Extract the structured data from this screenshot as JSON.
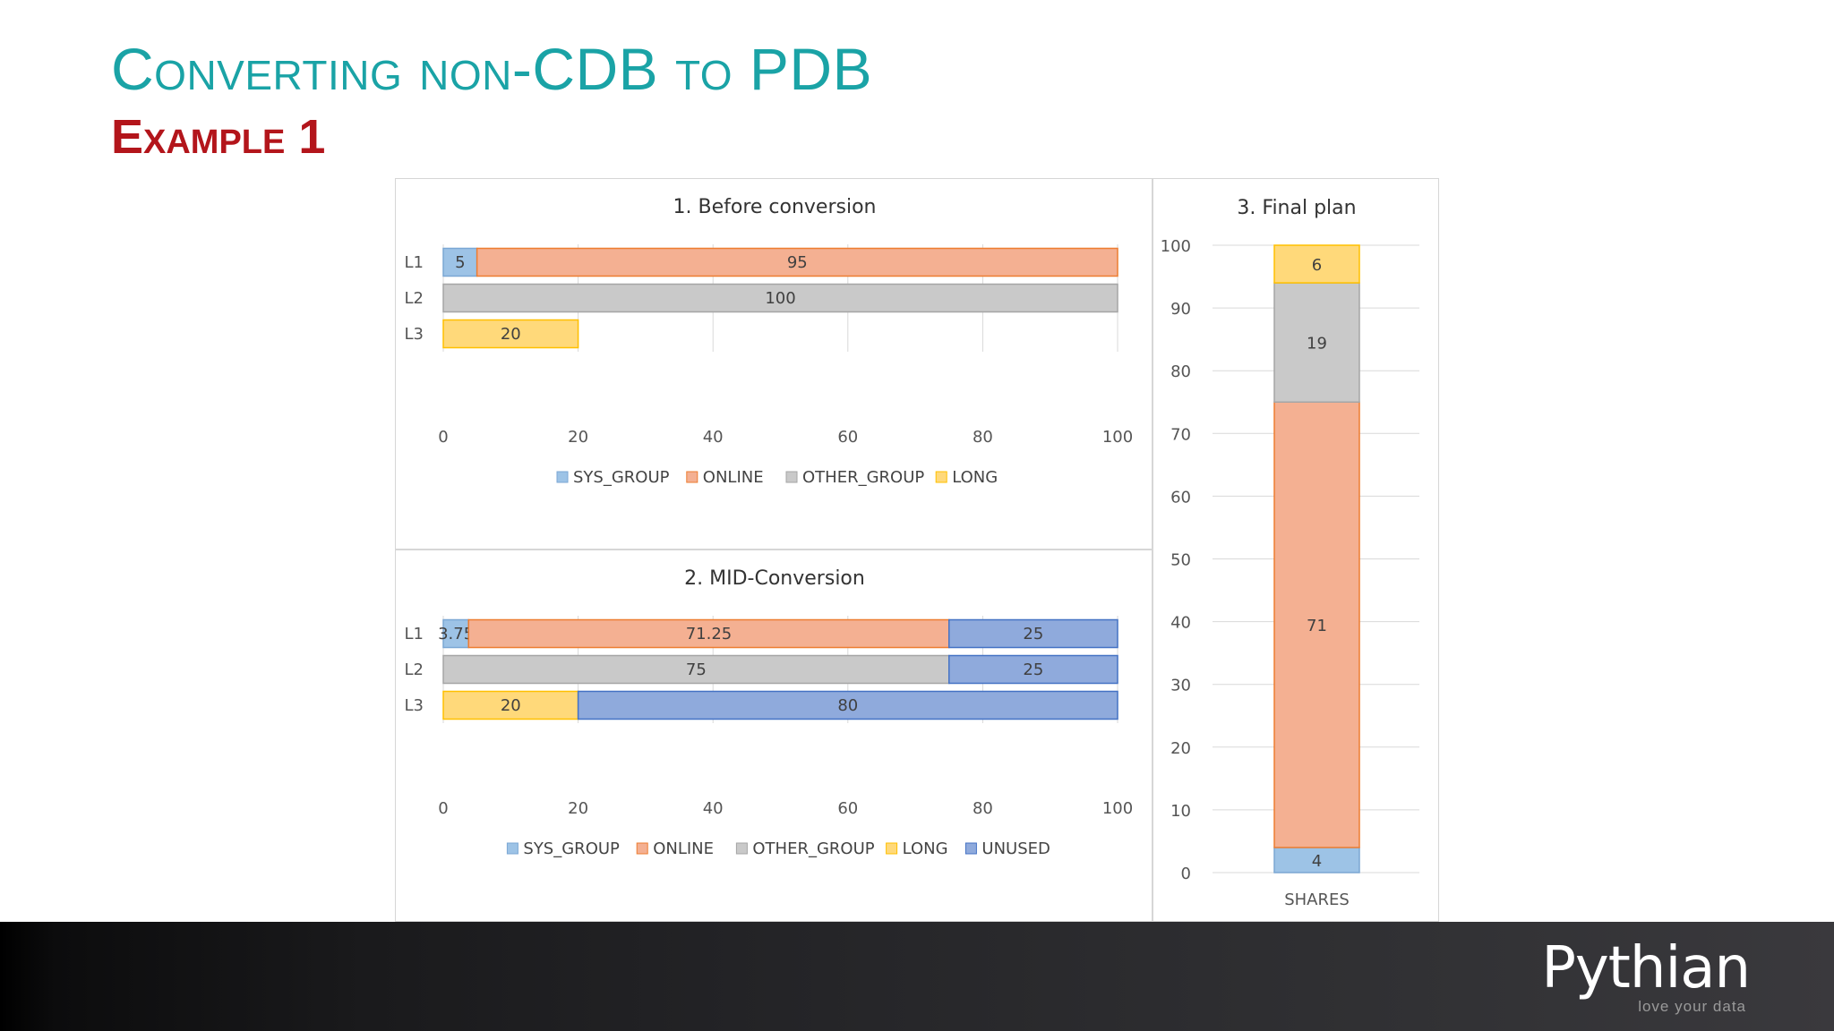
{
  "slide": {
    "title": "Converting non-CDB to PDB",
    "subtitle": "Example 1"
  },
  "colors": {
    "SYS_GROUP": "#9dc3e6",
    "ONLINE": "#f4b092",
    "OTHER_GROUP": "#c9c9c9",
    "LONG": "#ffd97a",
    "UNUSED": "#8faadc",
    "SYS_GROUP_border": "#7ba7d4",
    "ONLINE_border": "#ed7d31",
    "OTHER_GROUP_border": "#a5a5a5",
    "LONG_border": "#ffc000",
    "UNUSED_border": "#4472c4"
  },
  "footer": {
    "logo_name": "Pythian",
    "logo_tagline": "love your data"
  },
  "chart_data": [
    {
      "type": "bar",
      "orientation": "horizontal",
      "stacked": true,
      "title": "1. Before conversion",
      "categories": [
        "L1",
        "L2",
        "L3"
      ],
      "series": [
        {
          "name": "SYS_GROUP",
          "values": [
            5,
            null,
            null
          ]
        },
        {
          "name": "ONLINE",
          "values": [
            95,
            null,
            null
          ]
        },
        {
          "name": "OTHER_GROUP",
          "values": [
            null,
            100,
            null
          ]
        },
        {
          "name": "LONG",
          "values": [
            null,
            null,
            20
          ]
        }
      ],
      "xlim": [
        0,
        100
      ],
      "xticks": [
        0,
        20,
        40,
        60,
        80,
        100
      ],
      "legend": [
        "SYS_GROUP",
        "ONLINE",
        "OTHER_GROUP",
        "LONG"
      ],
      "legend_position": "bottom",
      "grid": true
    },
    {
      "type": "bar",
      "orientation": "horizontal",
      "stacked": true,
      "title": "2. MID-Conversion",
      "categories": [
        "L1",
        "L2",
        "L3"
      ],
      "series": [
        {
          "name": "SYS_GROUP",
          "values": [
            3.75,
            null,
            null
          ]
        },
        {
          "name": "ONLINE",
          "values": [
            71.25,
            null,
            null
          ]
        },
        {
          "name": "OTHER_GROUP",
          "values": [
            null,
            75,
            null
          ]
        },
        {
          "name": "LONG",
          "values": [
            null,
            null,
            20
          ]
        },
        {
          "name": "UNUSED",
          "values": [
            25,
            25,
            80
          ]
        }
      ],
      "xlim": [
        0,
        100
      ],
      "xticks": [
        0,
        20,
        40,
        60,
        80,
        100
      ],
      "legend": [
        "SYS_GROUP",
        "ONLINE",
        "OTHER_GROUP",
        "LONG",
        "UNUSED"
      ],
      "legend_position": "bottom",
      "grid": true
    },
    {
      "type": "bar",
      "orientation": "vertical",
      "stacked": true,
      "title": "3. Final plan",
      "categories": [
        "SHARES"
      ],
      "series": [
        {
          "name": "SYS_GROUP",
          "values": [
            4
          ]
        },
        {
          "name": "ONLINE",
          "values": [
            71
          ]
        },
        {
          "name": "OTHER_GROUP",
          "values": [
            19
          ]
        },
        {
          "name": "LONG",
          "values": [
            6
          ]
        }
      ],
      "ylim": [
        0,
        100
      ],
      "yticks": [
        0,
        10,
        20,
        30,
        40,
        50,
        60,
        70,
        80,
        90,
        100
      ],
      "legend_position": "none",
      "grid": true
    }
  ]
}
